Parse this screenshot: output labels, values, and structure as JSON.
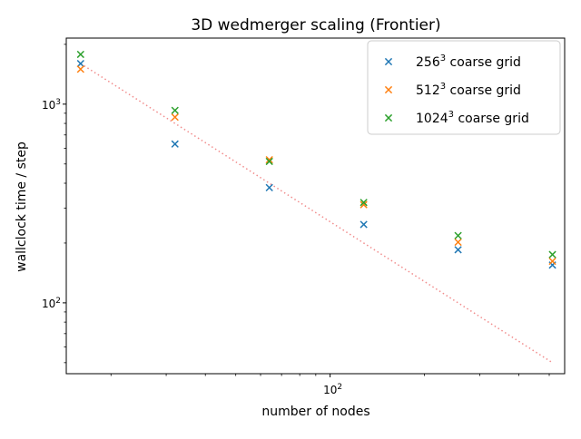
{
  "chart_data": {
    "type": "scatter",
    "title": "3D wedmerger scaling (Frontier)",
    "xlabel": "number of nodes",
    "ylabel": "wallclock time / step",
    "xscale": "log",
    "yscale": "log",
    "xlim": [
      14.4,
      560
    ],
    "ylim": [
      44,
      2150
    ],
    "x_major_ticks": [
      {
        "value": 100,
        "base": "10",
        "exp": "2"
      }
    ],
    "y_major_ticks": [
      {
        "value": 100,
        "base": "10",
        "exp": "2"
      },
      {
        "value": 1000,
        "base": "10",
        "exp": "3"
      }
    ],
    "x_minor_ticks": [
      20,
      30,
      40,
      50,
      60,
      70,
      80,
      90,
      200,
      300,
      400,
      500
    ],
    "y_minor_ticks": [
      50,
      60,
      70,
      80,
      90,
      200,
      300,
      400,
      500,
      600,
      700,
      800,
      900,
      2000
    ],
    "series": [
      {
        "name_base": "256",
        "name_exp": "3",
        "name_rest": " coarse grid",
        "marker": "x",
        "color": "#1f77b4",
        "x": [
          16,
          32,
          64,
          128,
          256,
          512
        ],
        "y": [
          1600,
          630,
          380,
          248,
          185,
          155
        ]
      },
      {
        "name_base": "512",
        "name_exp": "3",
        "name_rest": " coarse grid",
        "marker": "x",
        "color": "#ff7f0e",
        "x": [
          16,
          32,
          64,
          128,
          256,
          512
        ],
        "y": [
          1500,
          860,
          525,
          312,
          202,
          162
        ]
      },
      {
        "name_base": "1024",
        "name_exp": "3",
        "name_rest": " coarse grid",
        "marker": "x",
        "color": "#2ca02c",
        "x": [
          16,
          32,
          64,
          128,
          256,
          512
        ],
        "y": [
          1780,
          930,
          515,
          320,
          218,
          175
        ]
      }
    ],
    "ideal_line": {
      "style": "dotted",
      "color": "#f08080",
      "x": [
        16,
        512
      ],
      "y": [
        1600,
        50
      ]
    },
    "legend_position": "upper right"
  }
}
